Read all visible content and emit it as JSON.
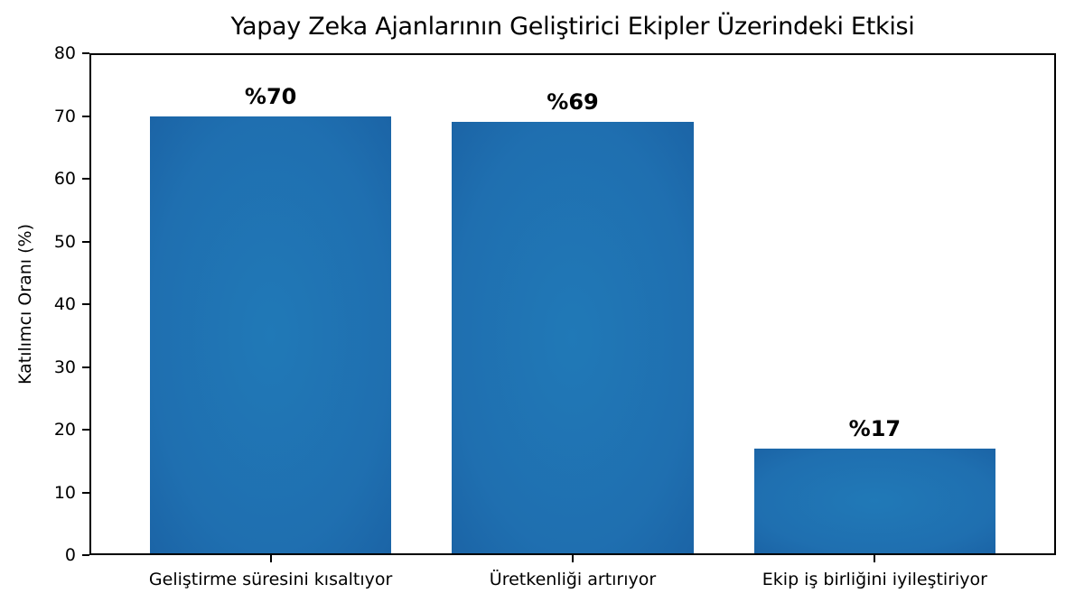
{
  "chart_data": {
    "type": "bar",
    "title": "Yapay Zeka Ajanlarının Geliştirici Ekipler Üzerindeki Etkisi",
    "xlabel": "",
    "ylabel": "Katılımcı Oranı (%)",
    "ylim": [
      0,
      80
    ],
    "yticks": [
      "0",
      "10",
      "20",
      "30",
      "40",
      "50",
      "60",
      "70",
      "80"
    ],
    "categories": [
      "Geliştirme süresini kısaltıyor",
      "Üretkenliği artırıyor",
      "Ekip iş birliğini iyileştiriyor"
    ],
    "values": [
      70,
      69,
      17
    ],
    "data_labels": [
      "%70",
      "%69",
      "%17"
    ],
    "bar_color": "#1f6fb0",
    "grid": false,
    "legend": null
  }
}
